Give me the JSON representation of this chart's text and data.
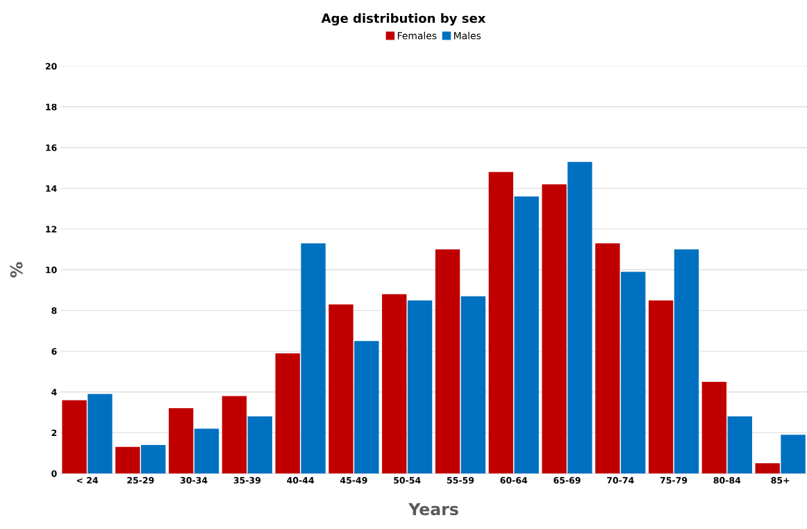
{
  "chart_data": {
    "type": "bar",
    "title": "Age distribution by sex",
    "xlabel": "Years",
    "ylabel": "%",
    "categories": [
      "< 24",
      "25-29",
      "30-34",
      "35-39",
      "40-44",
      "45-49",
      "50-54",
      "55-59",
      "60-64",
      "65-69",
      "70-74",
      "75-79",
      "80-84",
      "85+"
    ],
    "series": [
      {
        "name": "Females",
        "color": "#c00000",
        "values": [
          3.6,
          1.3,
          3.2,
          3.8,
          5.9,
          8.3,
          8.8,
          11.0,
          14.8,
          14.2,
          11.3,
          8.5,
          4.5,
          0.5
        ]
      },
      {
        "name": "Males",
        "color": "#0070c0",
        "values": [
          3.9,
          1.4,
          2.2,
          2.8,
          11.3,
          6.5,
          8.5,
          8.7,
          13.6,
          15.3,
          9.9,
          11.0,
          2.8,
          1.9
        ]
      }
    ],
    "ylim": [
      0,
      20
    ],
    "yticks": [
      0,
      2,
      4,
      6,
      8,
      10,
      12,
      14,
      16,
      18,
      20
    ],
    "grid": "y",
    "legend": "top"
  }
}
